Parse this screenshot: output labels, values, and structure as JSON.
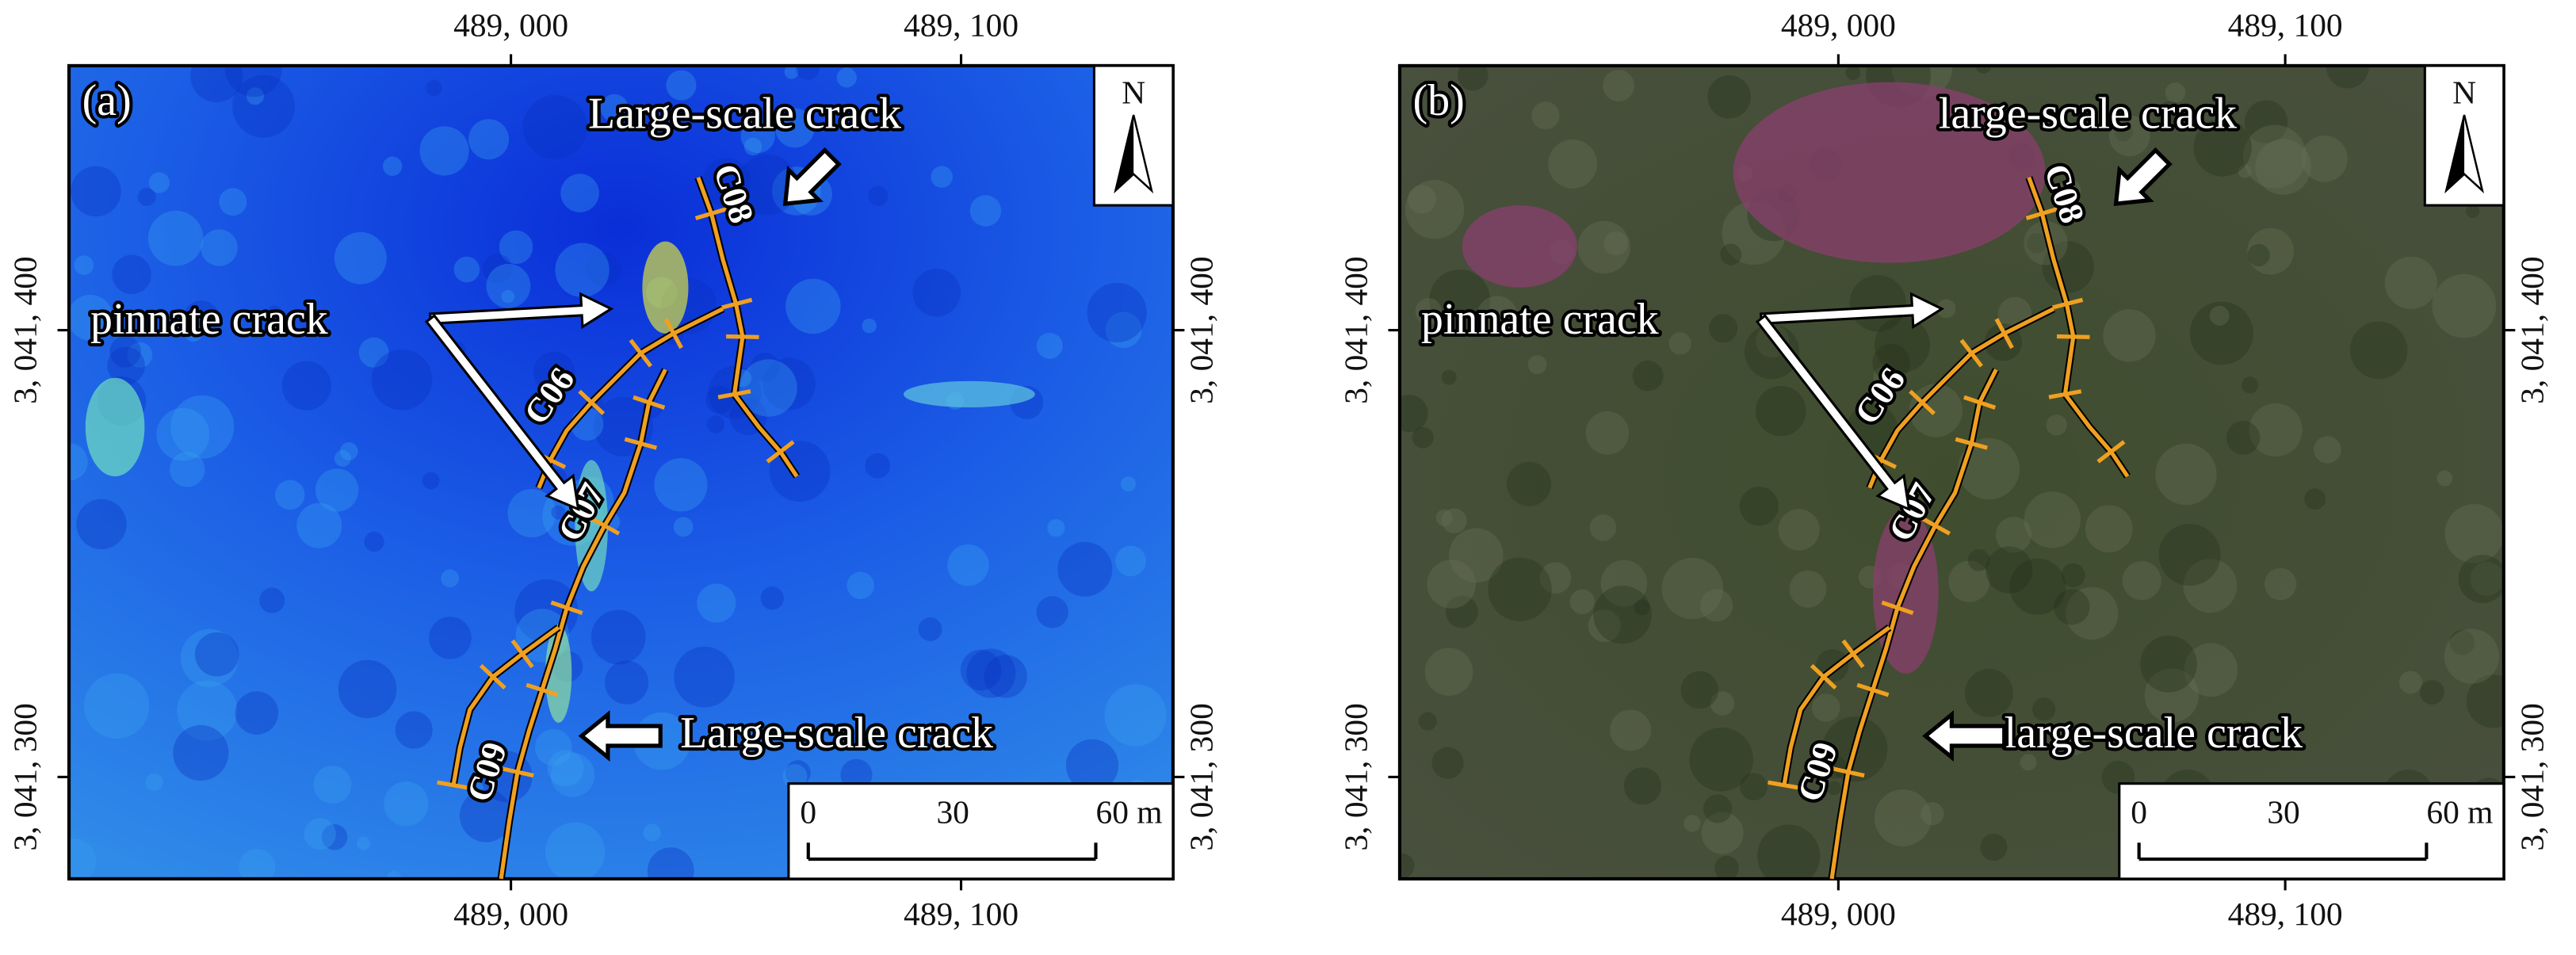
{
  "panels": [
    {
      "label": "(a)",
      "top_crack": "Large-scale crack",
      "pinnate": "pinnate crack",
      "bottom_crack": "Large-scale crack",
      "cracks": [
        "C06",
        "C07",
        "C08",
        "C09"
      ],
      "north": "N",
      "scale_bar": [
        "0",
        "30",
        "60 m"
      ],
      "x_ticks": [
        "489, 000",
        "489, 100"
      ],
      "y_ticks": [
        "3, 041, 400",
        "3, 041, 300"
      ]
    },
    {
      "label": "(b)",
      "top_crack": "large-scale crack",
      "pinnate": "pinnate crack",
      "bottom_crack": "large-scale crack",
      "cracks": [
        "C06",
        "C07",
        "C08",
        "C09"
      ],
      "north": "N",
      "scale_bar": [
        "0",
        "30",
        "60 m"
      ],
      "x_ticks": [
        "489, 000",
        "489, 100"
      ],
      "y_ticks": [
        "3, 041, 400",
        "3, 041, 300"
      ]
    }
  ]
}
